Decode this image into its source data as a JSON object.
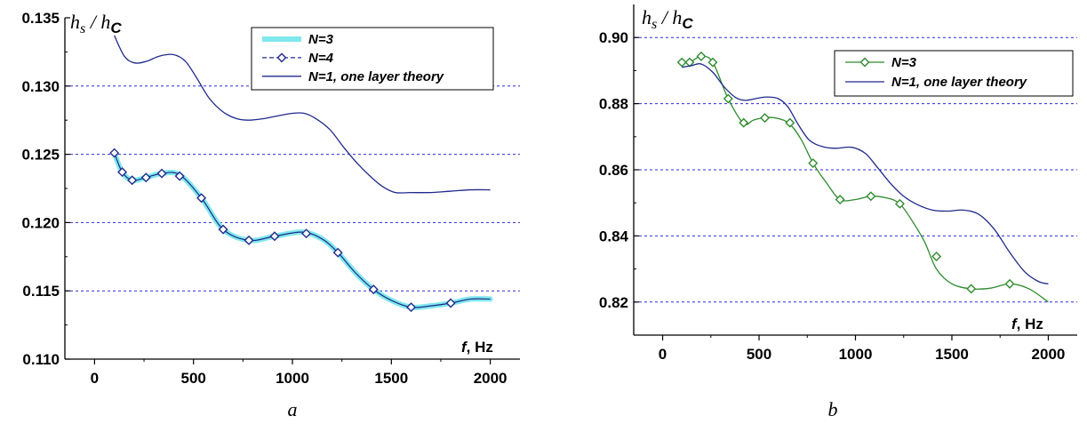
{
  "chart_data": [
    {
      "type": "line",
      "panel_label": "a",
      "ylabel": {
        "h": "h",
        "s": "s",
        "slash": " / ",
        "h2": "h",
        "c": "C"
      },
      "xlabel": {
        "f": "f",
        "rest": ", Hz"
      },
      "xlim": [
        -150,
        2150
      ],
      "ylim": [
        0.11,
        0.135
      ],
      "x_ticks": [
        0,
        500,
        1000,
        1500,
        2000
      ],
      "x_tick_labels": [
        "0",
        "500",
        "1000",
        "1500",
        "2000"
      ],
      "y_ticks": [
        0.11,
        0.115,
        0.12,
        0.125,
        0.13,
        0.135
      ],
      "y_tick_labels": [
        "0.110",
        "0.115",
        "0.120",
        "0.125",
        "0.130",
        "0.135"
      ],
      "grid": "horizontal dashed at 0.115, 0.120, 0.125, 0.130",
      "legend_position": "top-right",
      "series": [
        {
          "name": "N=3",
          "color": "#7fe8ec",
          "style": "thick",
          "x": [
            100,
            140,
            190,
            260,
            340,
            430,
            540,
            650,
            780,
            910,
            1050,
            1150,
            1230,
            1320,
            1410,
            1500,
            1600,
            1700,
            1800,
            1900,
            2000
          ],
          "y": [
            0.1251,
            0.1237,
            0.1231,
            0.1233,
            0.1236,
            0.1235,
            0.1218,
            0.1195,
            0.1187,
            0.119,
            0.1193,
            0.1188,
            0.1178,
            0.1163,
            0.1151,
            0.1143,
            0.1138,
            0.1139,
            0.1141,
            0.1144,
            0.1144
          ]
        },
        {
          "name": "N=4",
          "color": "#1f2a8c",
          "style": "dashed-diamond",
          "x": [
            100,
            140,
            190,
            260,
            340,
            430,
            540,
            650,
            780,
            910,
            1050,
            1150,
            1230,
            1320,
            1410,
            1500,
            1600,
            1700,
            1800,
            1900,
            2000
          ],
          "y": [
            0.1251,
            0.1237,
            0.1231,
            0.1233,
            0.1236,
            0.1235,
            0.1218,
            0.1195,
            0.1187,
            0.119,
            0.1193,
            0.1188,
            0.1178,
            0.1163,
            0.1151,
            0.1143,
            0.1138,
            0.1139,
            0.1141,
            0.1144,
            0.1144
          ],
          "markers_x": [
            100,
            140,
            190,
            260,
            340,
            430,
            540,
            650,
            780,
            910,
            1070,
            1230,
            1410,
            1600,
            1800
          ],
          "markers_y": [
            0.1251,
            0.1237,
            0.1231,
            0.1233,
            0.1236,
            0.1234,
            0.1218,
            0.1195,
            0.1187,
            0.119,
            0.1192,
            0.1178,
            0.1151,
            0.1138,
            0.1141
          ]
        },
        {
          "name": "N=1, one layer theory",
          "color": "#1f2a8c",
          "style": "solid",
          "x": [
            100,
            150,
            200,
            260,
            330,
            400,
            460,
            520,
            580,
            650,
            720,
            780,
            850,
            920,
            1000,
            1060,
            1120,
            1190,
            1260,
            1330,
            1400,
            1460,
            1520,
            1600,
            1700,
            1800,
            1900,
            2000
          ],
          "y": [
            0.1337,
            0.1322,
            0.1317,
            0.1318,
            0.1322,
            0.1323,
            0.1318,
            0.1305,
            0.1291,
            0.1281,
            0.1276,
            0.1275,
            0.1276,
            0.1278,
            0.128,
            0.128,
            0.1276,
            0.1268,
            0.1255,
            0.1243,
            0.1233,
            0.1226,
            0.1222,
            0.1222,
            0.1222,
            0.1223,
            0.1224,
            0.1224
          ]
        }
      ]
    },
    {
      "type": "line",
      "panel_label": "b",
      "ylabel": {
        "h": "h",
        "s": "s",
        "slash": " / ",
        "h2": "h",
        "c": "C"
      },
      "xlabel": {
        "f": "f",
        "rest": ", Hz"
      },
      "xlim": [
        -150,
        2150
      ],
      "ylim": [
        0.81,
        0.91
      ],
      "x_ticks": [
        0,
        500,
        1000,
        1500,
        2000
      ],
      "x_tick_labels": [
        "0",
        "500",
        "1000",
        "1500",
        "2000"
      ],
      "y_ticks": [
        0.82,
        0.84,
        0.86,
        0.88,
        0.9
      ],
      "y_tick_labels": [
        "0.82",
        "0.84",
        "0.86",
        "0.88",
        "0.90"
      ],
      "grid": "horizontal dashed at 0.82, 0.84, 0.86, 0.88, 0.90",
      "legend_position": "top-right",
      "series": [
        {
          "name": "N=3",
          "color": "#2e8b2e",
          "style": "solid-diamond",
          "x": [
            100,
            140,
            200,
            260,
            340,
            420,
            470,
            530,
            600,
            660,
            720,
            780,
            850,
            920,
            1000,
            1080,
            1160,
            1230,
            1300,
            1360,
            1420,
            1500,
            1600,
            1700,
            1800,
            1900,
            2000
          ],
          "y": [
            0.8925,
            0.8925,
            0.8943,
            0.8925,
            0.8815,
            0.874,
            0.875,
            0.8758,
            0.8755,
            0.8738,
            0.869,
            0.862,
            0.856,
            0.851,
            0.851,
            0.852,
            0.8515,
            0.8497,
            0.844,
            0.838,
            0.83,
            0.8255,
            0.824,
            0.8242,
            0.8255,
            0.824,
            0.82
          ],
          "markers_x": [
            100,
            140,
            200,
            260,
            340,
            420,
            530,
            660,
            780,
            920,
            1080,
            1230,
            1420,
            1600,
            1800
          ],
          "markers_y": [
            0.8925,
            0.8925,
            0.8943,
            0.8925,
            0.8815,
            0.8742,
            0.8757,
            0.8742,
            0.862,
            0.851,
            0.852,
            0.8497,
            0.8338,
            0.824,
            0.8255
          ]
        },
        {
          "name": "N=1, one layer theory",
          "color": "#1f2a8c",
          "style": "solid",
          "x": [
            100,
            150,
            200,
            260,
            320,
            380,
            430,
            480,
            540,
            600,
            650,
            700,
            760,
            830,
            900,
            980,
            1050,
            1110,
            1180,
            1250,
            1320,
            1400,
            1480,
            1560,
            1640,
            1720,
            1800,
            1880,
            1950,
            2000
          ],
          "y": [
            0.891,
            0.8915,
            0.892,
            0.8895,
            0.885,
            0.8818,
            0.881,
            0.8815,
            0.882,
            0.8815,
            0.879,
            0.874,
            0.869,
            0.867,
            0.8665,
            0.8668,
            0.865,
            0.861,
            0.856,
            0.852,
            0.8495,
            0.8478,
            0.8475,
            0.8478,
            0.8465,
            0.842,
            0.835,
            0.829,
            0.8262,
            0.8255
          ]
        }
      ]
    }
  ]
}
